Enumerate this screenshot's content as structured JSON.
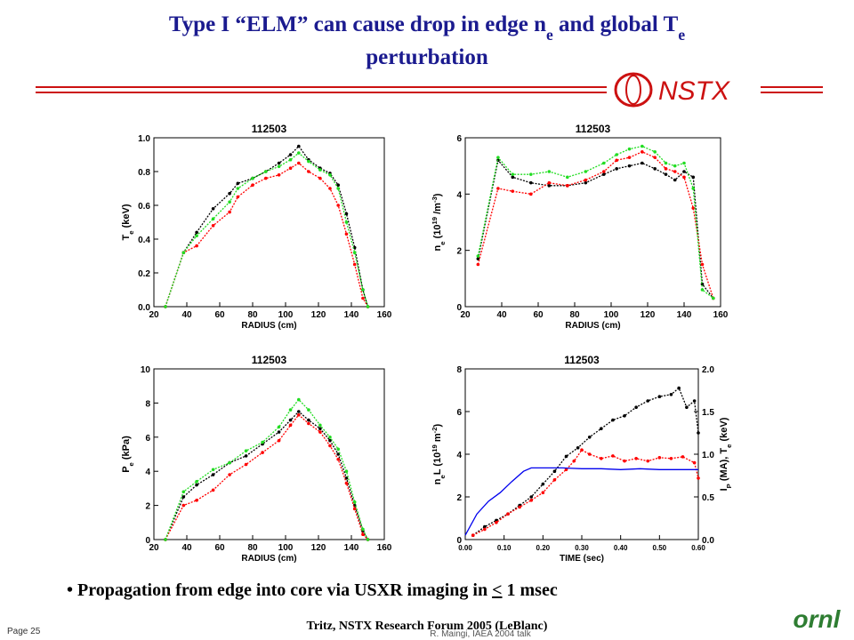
{
  "slide": {
    "title_line1": [
      "Type I “ELM” can cause drop in edge n",
      {
        "t": "e",
        "sub": true
      },
      " and global T",
      {
        "t": "e",
        "sub": true
      }
    ],
    "title_line2": "perturbation",
    "logo": "NSTX",
    "bullet": [
      "• Propagation from edge into core via USXR imaging in ",
      {
        "t": "<",
        "underline": true
      },
      " 1 msec"
    ],
    "footer_center": "Tritz, NSTX Research Forum 2005 (LeBlanc)",
    "footer_left": "Page 25",
    "footer_sub": "R. Maingi, IAEA 2004 talk",
    "footer_logo": "ornl"
  },
  "chart_data": [
    {
      "type": "line",
      "title": "112503",
      "xlabel": "RADIUS (cm)",
      "ylabel": [
        {
          "t": "T"
        },
        {
          "t": "e",
          "sub": true
        },
        {
          "t": " (keV)"
        }
      ],
      "xlim": [
        20,
        160
      ],
      "xticks": [
        20,
        40,
        60,
        80,
        100,
        120,
        140,
        160
      ],
      "ylim": [
        0,
        1.0
      ],
      "yticks": [
        {
          "value": 0,
          "label": "0.0"
        },
        0.2,
        0.4,
        0.6,
        0.8,
        {
          "value": 1.0,
          "label": "1.0"
        }
      ],
      "series": [
        {
          "color": "#000000",
          "x": [
            27,
            38,
            46,
            56,
            66,
            71,
            80,
            88,
            96,
            103,
            108,
            114,
            121,
            127,
            132,
            137,
            142,
            147,
            150
          ],
          "values": [
            0,
            0.32,
            0.44,
            0.58,
            0.67,
            0.73,
            0.76,
            0.8,
            0.85,
            0.9,
            0.95,
            0.87,
            0.82,
            0.79,
            0.72,
            0.55,
            0.35,
            0.1,
            0
          ]
        },
        {
          "color": "#ff0000",
          "x": [
            27,
            38,
            46,
            56,
            66,
            71,
            80,
            88,
            96,
            103,
            108,
            114,
            121,
            127,
            132,
            137,
            142,
            147,
            150
          ],
          "values": [
            0,
            0.32,
            0.36,
            0.48,
            0.56,
            0.65,
            0.72,
            0.76,
            0.78,
            0.82,
            0.85,
            0.8,
            0.76,
            0.7,
            0.6,
            0.43,
            0.25,
            0.05,
            0
          ]
        },
        {
          "color": "#22dd22",
          "x": [
            27,
            38,
            46,
            56,
            66,
            71,
            80,
            88,
            96,
            103,
            108,
            114,
            121,
            127,
            132,
            137,
            142,
            147,
            150
          ],
          "values": [
            0,
            0.32,
            0.42,
            0.52,
            0.62,
            0.7,
            0.76,
            0.8,
            0.83,
            0.87,
            0.91,
            0.86,
            0.81,
            0.78,
            0.7,
            0.5,
            0.32,
            0.1,
            0
          ]
        }
      ]
    },
    {
      "type": "line",
      "title": "112503",
      "xlabel": "RADIUS (cm)",
      "ylabel": [
        {
          "t": "n"
        },
        {
          "t": "e",
          "sub": true
        },
        {
          "t": " (10"
        },
        {
          "t": "19",
          "sup": true
        },
        {
          "t": " /m"
        },
        {
          "t": "-3",
          "sup": true
        },
        {
          "t": ")"
        }
      ],
      "xlim": [
        20,
        160
      ],
      "xticks": [
        20,
        40,
        60,
        80,
        100,
        120,
        140,
        160
      ],
      "ylim": [
        0,
        6
      ],
      "yticks": [
        0,
        2,
        4,
        6
      ],
      "series": [
        {
          "color": "#000000",
          "x": [
            27,
            38,
            46,
            56,
            66,
            76,
            86,
            96,
            103,
            110,
            117,
            124,
            130,
            135,
            140,
            145,
            150,
            156
          ],
          "values": [
            1.7,
            5.2,
            4.6,
            4.4,
            4.3,
            4.3,
            4.4,
            4.7,
            4.9,
            5.0,
            5.1,
            4.9,
            4.7,
            4.5,
            4.8,
            4.6,
            0.8,
            0.3
          ]
        },
        {
          "color": "#ff0000",
          "x": [
            27,
            38,
            46,
            56,
            66,
            76,
            86,
            96,
            103,
            110,
            117,
            124,
            130,
            135,
            140,
            145,
            150,
            156
          ],
          "values": [
            1.5,
            4.2,
            4.1,
            4.0,
            4.4,
            4.3,
            4.5,
            4.8,
            5.2,
            5.3,
            5.5,
            5.3,
            4.9,
            4.8,
            4.6,
            3.5,
            1.5,
            0.3
          ]
        },
        {
          "color": "#22dd22",
          "x": [
            27,
            38,
            46,
            56,
            66,
            76,
            86,
            96,
            103,
            110,
            117,
            124,
            130,
            135,
            140,
            145,
            150,
            156
          ],
          "values": [
            1.8,
            5.3,
            4.7,
            4.7,
            4.8,
            4.6,
            4.8,
            5.1,
            5.4,
            5.6,
            5.7,
            5.5,
            5.1,
            5.0,
            5.1,
            4.2,
            0.6,
            0.3
          ]
        }
      ]
    },
    {
      "type": "line",
      "title": "112503",
      "xlabel": "RADIUS (cm)",
      "ylabel": [
        {
          "t": "P"
        },
        {
          "t": "e",
          "sub": true
        },
        {
          "t": " (kPa)"
        }
      ],
      "xlim": [
        20,
        160
      ],
      "xticks": [
        20,
        40,
        60,
        80,
        100,
        120,
        140,
        160
      ],
      "ylim": [
        0,
        10
      ],
      "yticks": [
        0,
        2,
        4,
        6,
        8,
        10
      ],
      "series": [
        {
          "color": "#000000",
          "x": [
            27,
            38,
            46,
            56,
            66,
            76,
            86,
            96,
            103,
            108,
            114,
            121,
            127,
            132,
            137,
            142,
            147,
            150
          ],
          "values": [
            0,
            2.5,
            3.2,
            3.8,
            4.5,
            4.9,
            5.6,
            6.3,
            7.0,
            7.5,
            7.0,
            6.5,
            5.8,
            5.0,
            3.6,
            2.0,
            0.5,
            0
          ]
        },
        {
          "color": "#ff0000",
          "x": [
            27,
            38,
            46,
            56,
            66,
            76,
            86,
            96,
            103,
            108,
            114,
            121,
            127,
            132,
            137,
            142,
            147,
            150
          ],
          "values": [
            0,
            2.0,
            2.3,
            2.9,
            3.8,
            4.4,
            5.1,
            5.8,
            6.7,
            7.3,
            6.8,
            6.3,
            5.5,
            4.7,
            3.3,
            1.8,
            0.3,
            0
          ]
        },
        {
          "color": "#22dd22",
          "x": [
            27,
            38,
            46,
            56,
            66,
            76,
            86,
            96,
            103,
            108,
            114,
            121,
            127,
            132,
            137,
            142,
            147,
            150
          ],
          "values": [
            0,
            2.8,
            3.4,
            4.1,
            4.5,
            5.2,
            5.7,
            6.6,
            7.6,
            8.2,
            7.6,
            6.7,
            6.0,
            5.3,
            4.0,
            2.2,
            0.6,
            0
          ]
        }
      ]
    },
    {
      "type": "line",
      "title": "112503",
      "xlabel": "TIME (sec)",
      "ylabel": [
        {
          "t": "n"
        },
        {
          "t": "e",
          "sub": true
        },
        {
          "t": "L (10"
        },
        {
          "t": "19",
          "sup": true
        },
        {
          "t": " m"
        },
        {
          "t": "-2",
          "sup": true
        },
        {
          "t": ")"
        }
      ],
      "y2label": [
        {
          "t": "I"
        },
        {
          "t": "P",
          "sub": true
        },
        {
          "t": " (MA), T"
        },
        {
          "t": "e",
          "sub": true
        },
        {
          "t": " (keV)"
        }
      ],
      "xlim": [
        0,
        0.6
      ],
      "xticks": [
        {
          "value": 0,
          "label": "0.00"
        },
        {
          "value": 0.1,
          "label": "0.10"
        },
        {
          "value": 0.2,
          "label": "0.20"
        },
        {
          "value": 0.3,
          "label": "0.30"
        },
        {
          "value": 0.4,
          "label": "0.40"
        },
        {
          "value": 0.5,
          "label": "0.50"
        },
        {
          "value": 0.6,
          "label": "0.60"
        }
      ],
      "ylim": [
        0,
        8
      ],
      "yticks": [
        0,
        2,
        4,
        6,
        8
      ],
      "y2lim": [
        0,
        2.0
      ],
      "y2ticks": [
        {
          "value": 0,
          "label": "0.0"
        },
        0.5,
        {
          "value": 1.0,
          "label": "1.0"
        },
        1.5,
        {
          "value": 2.0,
          "label": "2.0"
        }
      ],
      "series": [
        {
          "color": "#000000",
          "x": [
            0.02,
            0.05,
            0.08,
            0.11,
            0.14,
            0.17,
            0.2,
            0.23,
            0.26,
            0.29,
            0.32,
            0.35,
            0.38,
            0.41,
            0.44,
            0.47,
            0.5,
            0.53,
            0.55,
            0.57,
            0.59,
            0.6
          ],
          "values": [
            0.2,
            0.6,
            0.9,
            1.2,
            1.6,
            2.0,
            2.6,
            3.2,
            3.9,
            4.3,
            4.8,
            5.2,
            5.6,
            5.8,
            6.2,
            6.5,
            6.7,
            6.8,
            7.1,
            6.2,
            6.5,
            5.0
          ]
        },
        {
          "color": "#ff0000",
          "axis": "y2",
          "x": [
            0.02,
            0.05,
            0.08,
            0.11,
            0.14,
            0.17,
            0.2,
            0.23,
            0.26,
            0.28,
            0.3,
            0.32,
            0.35,
            0.38,
            0.41,
            0.44,
            0.47,
            0.5,
            0.53,
            0.56,
            0.59,
            0.6
          ],
          "values": [
            0.05,
            0.12,
            0.2,
            0.3,
            0.38,
            0.46,
            0.55,
            0.7,
            0.82,
            0.92,
            1.05,
            1.0,
            0.95,
            0.98,
            0.92,
            0.95,
            0.92,
            0.96,
            0.95,
            0.97,
            0.9,
            0.72
          ]
        },
        {
          "color": "#0000ee",
          "axis": "y2",
          "markers": false,
          "x": [
            0.0,
            0.03,
            0.06,
            0.09,
            0.12,
            0.15,
            0.17,
            0.2,
            0.25,
            0.3,
            0.35,
            0.4,
            0.45,
            0.5,
            0.55,
            0.6
          ],
          "values": [
            0.05,
            0.3,
            0.45,
            0.55,
            0.68,
            0.8,
            0.84,
            0.84,
            0.84,
            0.83,
            0.83,
            0.82,
            0.83,
            0.82,
            0.82,
            0.82
          ]
        }
      ]
    }
  ]
}
